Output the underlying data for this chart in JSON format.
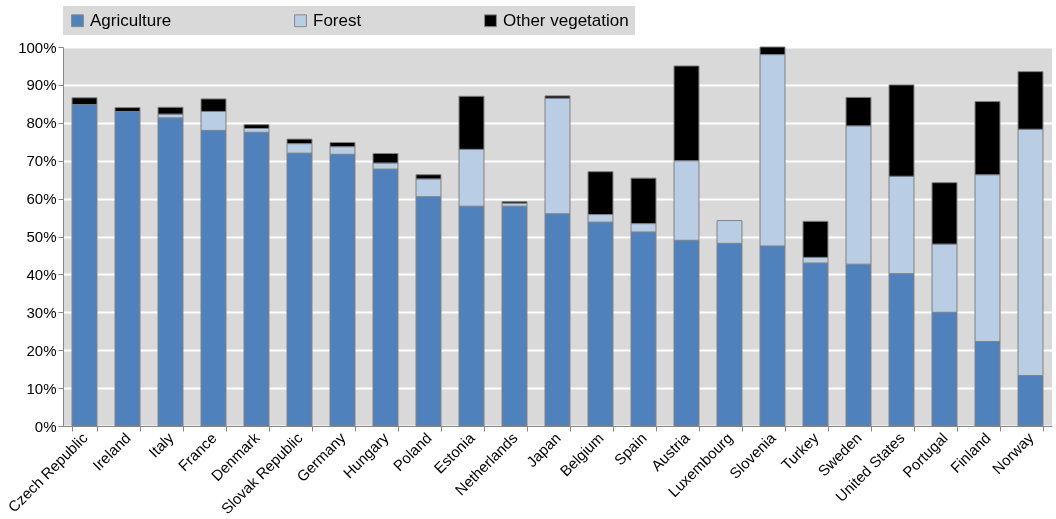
{
  "chart_data": {
    "type": "bar",
    "stacked": true,
    "categories": [
      "Czech Republic",
      "Ireland",
      "Italy",
      "France",
      "Denmark",
      "Slovak Republic",
      "Germany",
      "Hungary",
      "Poland",
      "Estonia",
      "Netherlands",
      "Japan",
      "Belgium",
      "Spain",
      "Austria",
      "Luxembourg",
      "Slovenia",
      "Turkey",
      "Sweden",
      "United States",
      "Portugal",
      "Finland",
      "Norway"
    ],
    "series": [
      {
        "name": "Agriculture",
        "color": "#4f81bd",
        "values": [
          84.8,
          83,
          81.3,
          78,
          77.5,
          72,
          71.7,
          67.8,
          60.5,
          58,
          58,
          56,
          53.8,
          51.2,
          49,
          48.2,
          47.5,
          43,
          42.7,
          40.2,
          30,
          22.3,
          13.3
        ]
      },
      {
        "name": "Forest",
        "color": "#b9cde5",
        "values": [
          null,
          null,
          1,
          5,
          1,
          2.5,
          2,
          1.6,
          4.7,
          15,
          0.8,
          30.5,
          2,
          2.2,
          21,
          6,
          50.5,
          1.5,
          36.5,
          25.7,
          18,
          44,
          65
        ]
      },
      {
        "name": "Other vegetation",
        "color": "#000000",
        "values": [
          1.8,
          1,
          1.8,
          3.3,
          1,
          1.2,
          1.1,
          2.5,
          1.1,
          14,
          0.4,
          0.6,
          11.3,
          12,
          25,
          null,
          2,
          9.5,
          7.5,
          24.1,
          16.2,
          19.3,
          15.2
        ]
      }
    ],
    "ylim": [
      0,
      100
    ],
    "yticks": [
      {
        "value": 0,
        "label": "0%"
      },
      {
        "value": 10,
        "label": "10%"
      },
      {
        "value": 20,
        "label": "20%"
      },
      {
        "value": 30,
        "label": "30%"
      },
      {
        "value": 40,
        "label": "40%"
      },
      {
        "value": 50,
        "label": "50%"
      },
      {
        "value": 60,
        "label": "60%"
      },
      {
        "value": 70,
        "label": "70%"
      },
      {
        "value": 80,
        "label": "80%"
      },
      {
        "value": 90,
        "label": "90%"
      },
      {
        "value": 100,
        "label": "100%"
      }
    ],
    "grid": "y",
    "legend": "top"
  }
}
